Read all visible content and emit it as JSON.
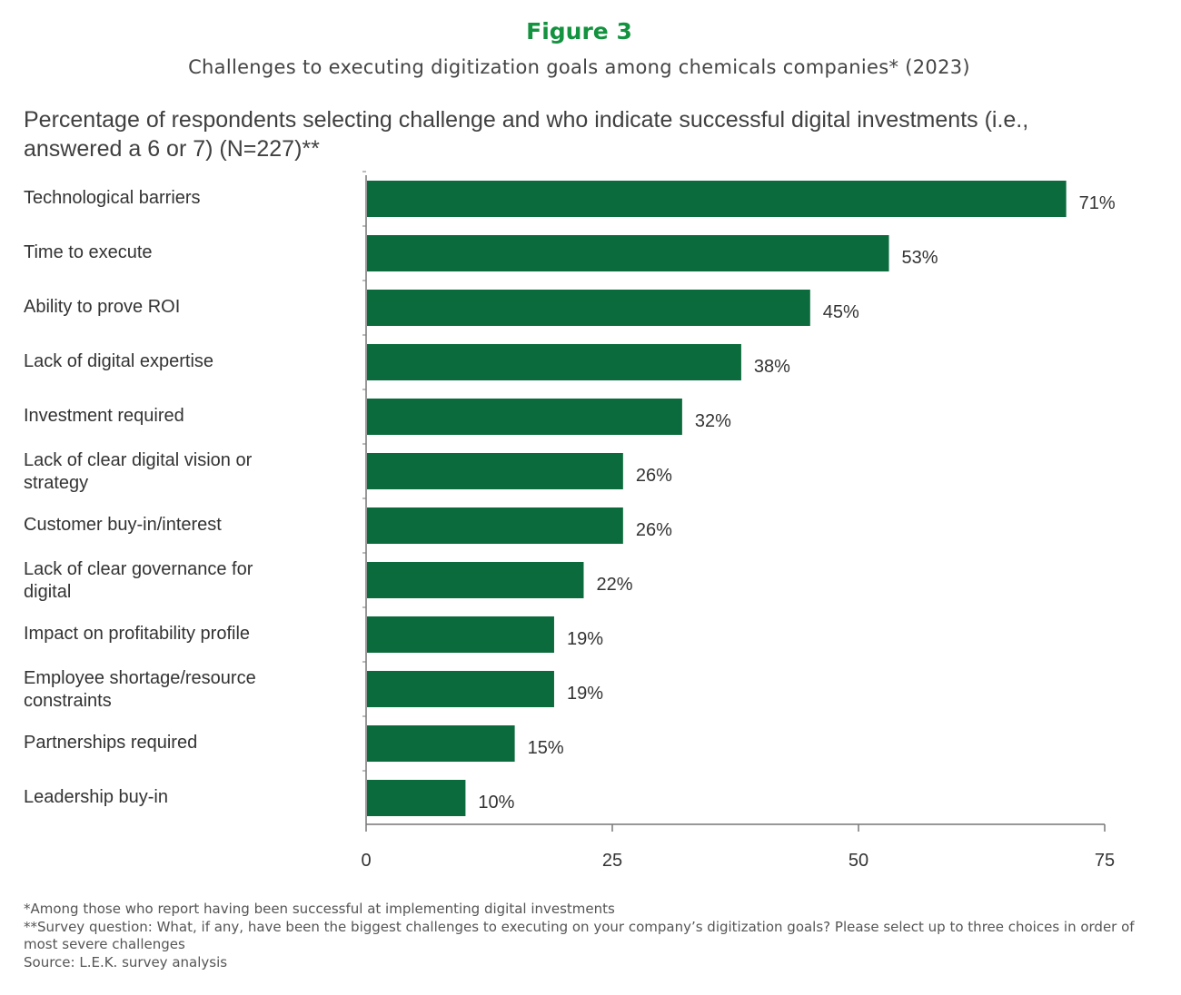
{
  "header": {
    "figure_label": "Figure 3",
    "subtitle": "Challenges to executing digitization goals among chemicals companies* (2023)"
  },
  "chart_data": {
    "type": "bar",
    "orientation": "horizontal",
    "title": "Percentage of respondents selecting challenge and who indicate successful digital investments (i.e., answered a 6 or 7)  (N=227)**",
    "categories": [
      "Technological barriers",
      "Time to execute",
      "Ability to prove ROI",
      "Lack of digital expertise",
      "Investment required",
      "Lack of clear digital vision or strategy",
      "Customer buy-in/interest",
      "Lack of clear governance for digital",
      "Impact on profitability profile",
      "Employee shortage/resource constraints",
      "Partnerships required",
      "Leadership buy-in"
    ],
    "values": [
      71,
      53,
      45,
      38,
      32,
      26,
      26,
      22,
      19,
      19,
      15,
      10
    ],
    "data_labels": [
      "71%",
      "53%",
      "45%",
      "38%",
      "32%",
      "26%",
      "26%",
      "22%",
      "19%",
      "19%",
      "15%",
      "10%"
    ],
    "xlim": [
      0,
      75
    ],
    "xticks": [
      "0",
      "25",
      "50",
      "75"
    ],
    "grid": false,
    "bar_color": "#0b6b3c"
  },
  "footnotes": [
    "*Among those who report having been successful at implementing digital investments",
    "**Survey question: What, if any, have been the biggest challenges to executing on your company’s digitization goals? Please select up to three choices in order of most severe challenges",
    "Source: L.E.K. survey analysis"
  ]
}
